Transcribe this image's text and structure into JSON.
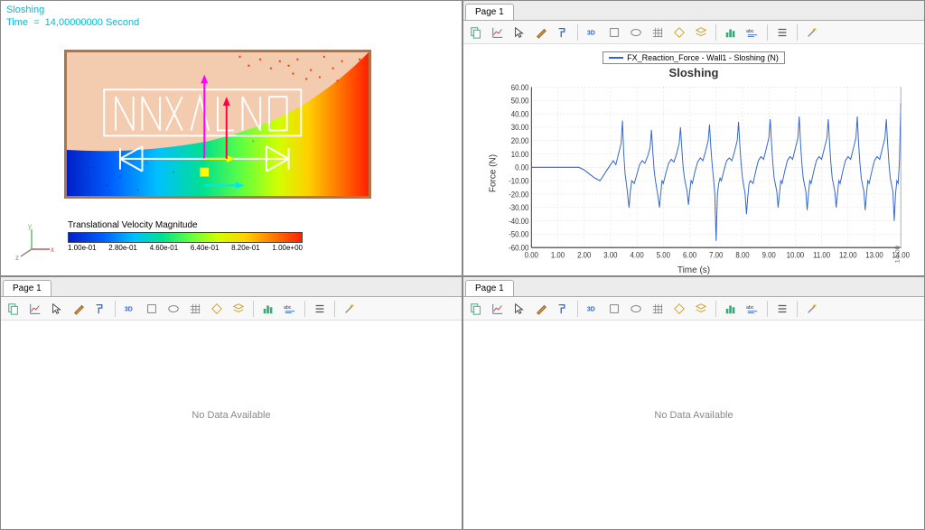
{
  "simulation": {
    "title": "Sloshing",
    "time_label": "Time  =  14,00000000 Second",
    "colorbar": {
      "label": "Translational Velocity Magnitude",
      "ticks": [
        "1.00e-01",
        "2.80e-01",
        "4.60e-01",
        "6.40e-01",
        "8.20e-01",
        "1.00e+00"
      ],
      "colors": [
        "#0020c8",
        "#0060ff",
        "#00c0ff",
        "#00e090",
        "#60ff40",
        "#d0ff00",
        "#ffd000",
        "#ff7800",
        "#ff2000"
      ]
    },
    "triad_labels": {
      "x": "x",
      "y": "y",
      "z": "z"
    },
    "container_border_color": "#b17547",
    "container_bg_color": "#f3cbaf"
  },
  "chart": {
    "tab_label": "Page 1",
    "legend": "FX_Reaction_Force - Wall1 - Sloshing (N)",
    "title": "Sloshing",
    "xlabel": "Time (s)",
    "ylabel": "Force (N)",
    "ylim": [
      -60,
      60
    ],
    "ytick_step": 10,
    "yticks": [
      "-60.00",
      "-50.00",
      "-40.00",
      "-30.00",
      "-20.00",
      "-10.00",
      "0.00",
      "10.00",
      "20.00",
      "30.00",
      "40.00",
      "50.00",
      "60.00"
    ],
    "xlim": [
      0,
      14
    ],
    "xtick_step": 1,
    "xticks": [
      "0.00",
      "1.00",
      "2.00",
      "3.00",
      "4.00",
      "5.00",
      "6.00",
      "7.00",
      "8.00",
      "9.00",
      "10.00",
      "11.00",
      "12.00",
      "13.00",
      "14.00"
    ],
    "line_color": "#3366cc",
    "grid_color": "#dddddd",
    "data": [
      [
        0.0,
        0
      ],
      [
        0.2,
        0
      ],
      [
        0.5,
        0
      ],
      [
        1.0,
        0
      ],
      [
        1.5,
        0
      ],
      [
        1.8,
        0
      ],
      [
        2.0,
        -2
      ],
      [
        2.2,
        -5
      ],
      [
        2.4,
        -8
      ],
      [
        2.6,
        -10
      ],
      [
        2.8,
        -4
      ],
      [
        3.0,
        2
      ],
      [
        3.1,
        5
      ],
      [
        3.2,
        2
      ],
      [
        3.3,
        10
      ],
      [
        3.4,
        18
      ],
      [
        3.45,
        35
      ],
      [
        3.5,
        10
      ],
      [
        3.55,
        -5
      ],
      [
        3.6,
        -12
      ],
      [
        3.7,
        -30
      ],
      [
        3.75,
        -18
      ],
      [
        3.8,
        -10
      ],
      [
        3.9,
        -12
      ],
      [
        4.0,
        -5
      ],
      [
        4.1,
        2
      ],
      [
        4.2,
        5
      ],
      [
        4.3,
        3
      ],
      [
        4.4,
        8
      ],
      [
        4.5,
        15
      ],
      [
        4.55,
        28
      ],
      [
        4.6,
        12
      ],
      [
        4.65,
        -2
      ],
      [
        4.7,
        -10
      ],
      [
        4.8,
        -22
      ],
      [
        4.85,
        -30
      ],
      [
        4.9,
        -20
      ],
      [
        4.95,
        -10
      ],
      [
        5.0,
        -12
      ],
      [
        5.1,
        -4
      ],
      [
        5.2,
        3
      ],
      [
        5.3,
        6
      ],
      [
        5.4,
        4
      ],
      [
        5.5,
        10
      ],
      [
        5.6,
        18
      ],
      [
        5.65,
        30
      ],
      [
        5.7,
        14
      ],
      [
        5.75,
        0
      ],
      [
        5.8,
        -8
      ],
      [
        5.9,
        -18
      ],
      [
        5.95,
        -28
      ],
      [
        6.0,
        -18
      ],
      [
        6.05,
        -10
      ],
      [
        6.1,
        -12
      ],
      [
        6.2,
        -3
      ],
      [
        6.3,
        4
      ],
      [
        6.4,
        7
      ],
      [
        6.5,
        5
      ],
      [
        6.6,
        12
      ],
      [
        6.7,
        20
      ],
      [
        6.75,
        32
      ],
      [
        6.8,
        15
      ],
      [
        6.85,
        2
      ],
      [
        6.9,
        -8
      ],
      [
        6.95,
        -20
      ],
      [
        7.0,
        -55
      ],
      [
        7.05,
        -20
      ],
      [
        7.1,
        -12
      ],
      [
        7.15,
        -8
      ],
      [
        7.2,
        -10
      ],
      [
        7.3,
        -2
      ],
      [
        7.4,
        5
      ],
      [
        7.5,
        7
      ],
      [
        7.6,
        5
      ],
      [
        7.7,
        12
      ],
      [
        7.8,
        20
      ],
      [
        7.85,
        34
      ],
      [
        7.9,
        16
      ],
      [
        7.95,
        2
      ],
      [
        8.0,
        -8
      ],
      [
        8.1,
        -20
      ],
      [
        8.15,
        -35
      ],
      [
        8.2,
        -22
      ],
      [
        8.25,
        -12
      ],
      [
        8.3,
        -10
      ],
      [
        8.4,
        -12
      ],
      [
        8.5,
        -3
      ],
      [
        8.6,
        5
      ],
      [
        8.7,
        8
      ],
      [
        8.8,
        6
      ],
      [
        8.9,
        14
      ],
      [
        9.0,
        22
      ],
      [
        9.05,
        36
      ],
      [
        9.1,
        18
      ],
      [
        9.15,
        3
      ],
      [
        9.2,
        -8
      ],
      [
        9.3,
        -18
      ],
      [
        9.35,
        -30
      ],
      [
        9.4,
        -20
      ],
      [
        9.45,
        -10
      ],
      [
        9.5,
        -12
      ],
      [
        9.6,
        -3
      ],
      [
        9.7,
        5
      ],
      [
        9.8,
        8
      ],
      [
        9.9,
        6
      ],
      [
        10.0,
        14
      ],
      [
        10.1,
        22
      ],
      [
        10.15,
        38
      ],
      [
        10.2,
        18
      ],
      [
        10.25,
        3
      ],
      [
        10.3,
        -8
      ],
      [
        10.4,
        -18
      ],
      [
        10.45,
        -32
      ],
      [
        10.5,
        -20
      ],
      [
        10.55,
        -10
      ],
      [
        10.6,
        -12
      ],
      [
        10.7,
        -3
      ],
      [
        10.8,
        5
      ],
      [
        10.9,
        8
      ],
      [
        11.0,
        6
      ],
      [
        11.1,
        14
      ],
      [
        11.2,
        22
      ],
      [
        11.25,
        36
      ],
      [
        11.3,
        18
      ],
      [
        11.35,
        3
      ],
      [
        11.4,
        -8
      ],
      [
        11.5,
        -18
      ],
      [
        11.55,
        -30
      ],
      [
        11.6,
        -20
      ],
      [
        11.65,
        -10
      ],
      [
        11.7,
        -12
      ],
      [
        11.8,
        -3
      ],
      [
        11.9,
        5
      ],
      [
        12.0,
        8
      ],
      [
        12.1,
        6
      ],
      [
        12.2,
        14
      ],
      [
        12.3,
        22
      ],
      [
        12.35,
        38
      ],
      [
        12.4,
        18
      ],
      [
        12.45,
        3
      ],
      [
        12.5,
        -8
      ],
      [
        12.6,
        -18
      ],
      [
        12.65,
        -32
      ],
      [
        12.7,
        -20
      ],
      [
        12.75,
        -10
      ],
      [
        12.8,
        -12
      ],
      [
        12.9,
        -3
      ],
      [
        13.0,
        5
      ],
      [
        13.1,
        8
      ],
      [
        13.2,
        6
      ],
      [
        13.3,
        14
      ],
      [
        13.4,
        22
      ],
      [
        13.45,
        36
      ],
      [
        13.5,
        18
      ],
      [
        13.55,
        3
      ],
      [
        13.6,
        -8
      ],
      [
        13.7,
        -18
      ],
      [
        13.75,
        -40
      ],
      [
        13.8,
        -20
      ],
      [
        13.85,
        -10
      ],
      [
        13.9,
        -12
      ],
      [
        13.95,
        5
      ],
      [
        14.0,
        48
      ]
    ],
    "marker_label": "14.00"
  },
  "empty_panels": {
    "tab_label": "Page 1",
    "message": "No Data Available"
  },
  "toolbar_icons": [
    "copy",
    "chart-line",
    "cursor",
    "brush",
    "format",
    "sep",
    "3d",
    "box",
    "ellipse",
    "grid",
    "diamond",
    "layers",
    "sep",
    "bar-chart",
    "abc-settings",
    "sep",
    "list",
    "sep",
    "wand"
  ]
}
